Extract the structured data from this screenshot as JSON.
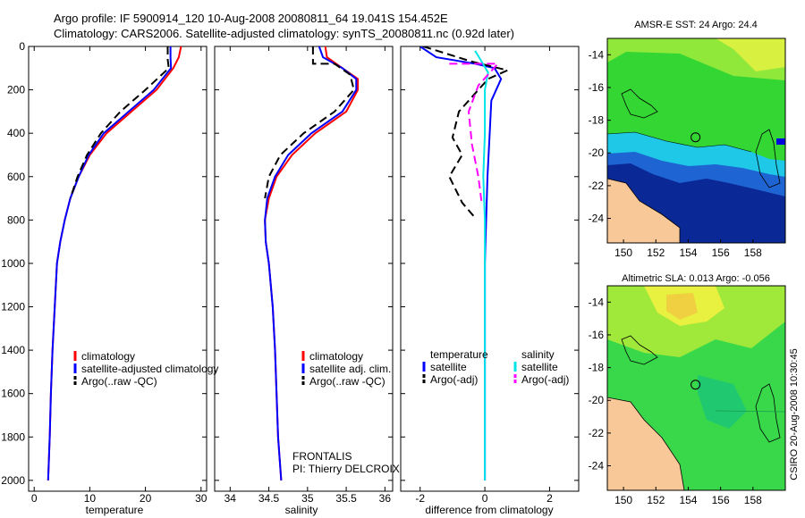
{
  "header": {
    "line1": "Argo profile: IF 5900914_120 10-Aug-2008 20080811_64 19.041S 154.452E",
    "line2": "Climatology: CARS2006. Satellite-adjusted climatology: synTS_20080811.nc (0.92d later)"
  },
  "colors": {
    "clim": "#ff0000",
    "sat": "#0000ff",
    "argo": "#000000",
    "sat_diff": "#00e5e5",
    "argo_adj": "#ff00ff",
    "land": "#f8c898"
  },
  "chart_data": [
    {
      "id": "temperature",
      "type": "line",
      "xlabel": "temperature",
      "xlim": [
        -1,
        31
      ],
      "ylim": [
        2050,
        0
      ],
      "xticks": [
        "0",
        "10",
        "20",
        "30"
      ],
      "xtick_values": [
        0,
        10,
        20,
        30
      ],
      "yticks": [
        "0",
        "200",
        "400",
        "600",
        "800",
        "1000",
        "1200",
        "1400",
        "1600",
        "1800",
        "2000"
      ],
      "ytick_values": [
        0,
        200,
        400,
        600,
        800,
        1000,
        1200,
        1400,
        1600,
        1800,
        2000
      ],
      "legend": [
        "climatology",
        "satellite-adjusted climatology",
        "Argo(..raw -QC)"
      ],
      "series": [
        {
          "name": "climatology",
          "color_key": "clim",
          "dash": "",
          "points": [
            [
              26.4,
              0
            ],
            [
              26,
              50
            ],
            [
              25,
              100
            ],
            [
              22,
              200
            ],
            [
              17.5,
              300
            ],
            [
              13,
              400
            ],
            [
              10,
              500
            ],
            [
              8,
              600
            ],
            [
              6.5,
              700
            ],
            [
              5.5,
              800
            ],
            [
              4.7,
              900
            ],
            [
              4.1,
              1000
            ],
            [
              3.7,
              1200
            ],
            [
              3.3,
              1400
            ],
            [
              3,
              1600
            ],
            [
              2.8,
              1800
            ],
            [
              2.5,
              2000
            ]
          ]
        },
        {
          "name": "satellite-adjusted climatology",
          "color_key": "sat",
          "dash": "",
          "points": [
            [
              24.5,
              0
            ],
            [
              24.5,
              50
            ],
            [
              24.6,
              100
            ],
            [
              21.5,
              200
            ],
            [
              17,
              300
            ],
            [
              12.5,
              400
            ],
            [
              9.8,
              500
            ],
            [
              8,
              600
            ],
            [
              6.5,
              700
            ],
            [
              5.5,
              800
            ],
            [
              4.7,
              900
            ],
            [
              4.1,
              1000
            ],
            [
              3.7,
              1200
            ],
            [
              3.3,
              1400
            ],
            [
              3,
              1600
            ],
            [
              2.8,
              1800
            ],
            [
              2.5,
              2000
            ]
          ]
        },
        {
          "name": "Argo(..raw -QC)",
          "color_key": "argo",
          "dash": "9,5",
          "points": [
            [
              24,
              0
            ],
            [
              24,
              60
            ],
            [
              24.2,
              100
            ],
            [
              20,
              200
            ],
            [
              15.5,
              300
            ],
            [
              12,
              400
            ],
            [
              9.5,
              500
            ],
            [
              7.8,
              600
            ],
            [
              6.5,
              700
            ]
          ]
        }
      ]
    },
    {
      "id": "salinity",
      "type": "line",
      "xlabel": "salinity",
      "xlim": [
        33.8,
        36.1
      ],
      "ylim": [
        2050,
        0
      ],
      "xticks": [
        "34",
        "34.5",
        "35",
        "35.5",
        "36"
      ],
      "xtick_values": [
        34,
        34.5,
        35,
        35.5,
        36
      ],
      "legend": [
        "climatology",
        "satellite adj. clim.",
        "Argo(..raw -QC)"
      ],
      "annotations": [
        "FRONTALIS",
        "PI: Thierry DELCROIX"
      ],
      "series": [
        {
          "name": "climatology",
          "color_key": "clim",
          "dash": "",
          "points": [
            [
              35.23,
              0
            ],
            [
              35.25,
              50
            ],
            [
              35.45,
              100
            ],
            [
              35.65,
              150
            ],
            [
              35.65,
              200
            ],
            [
              35.5,
              300
            ],
            [
              35.1,
              400
            ],
            [
              34.8,
              500
            ],
            [
              34.6,
              600
            ],
            [
              34.5,
              700
            ],
            [
              34.45,
              800
            ],
            [
              34.46,
              900
            ],
            [
              34.5,
              1000
            ],
            [
              34.55,
              1200
            ],
            [
              34.58,
              1400
            ],
            [
              34.6,
              1600
            ],
            [
              34.62,
              1800
            ],
            [
              34.66,
              2000
            ]
          ]
        },
        {
          "name": "satellite adj. clim.",
          "color_key": "sat",
          "dash": "",
          "points": [
            [
              35.15,
              0
            ],
            [
              35.2,
              50
            ],
            [
              35.45,
              100
            ],
            [
              35.63,
              150
            ],
            [
              35.63,
              200
            ],
            [
              35.45,
              300
            ],
            [
              35.05,
              400
            ],
            [
              34.75,
              500
            ],
            [
              34.58,
              600
            ],
            [
              34.48,
              700
            ],
            [
              34.45,
              800
            ],
            [
              34.46,
              900
            ],
            [
              34.5,
              1000
            ],
            [
              34.55,
              1200
            ],
            [
              34.58,
              1400
            ],
            [
              34.6,
              1600
            ],
            [
              34.62,
              1800
            ],
            [
              34.66,
              2000
            ]
          ]
        },
        {
          "name": "Argo(..raw -QC)",
          "color_key": "argo",
          "dash": "9,5",
          "points": [
            [
              35.07,
              0
            ],
            [
              35.07,
              80
            ],
            [
              35.35,
              80
            ],
            [
              35.55,
              130
            ],
            [
              35.6,
              200
            ],
            [
              35.35,
              300
            ],
            [
              34.95,
              400
            ],
            [
              34.65,
              500
            ],
            [
              34.5,
              600
            ],
            [
              34.45,
              700
            ]
          ]
        }
      ]
    },
    {
      "id": "difference",
      "type": "line",
      "xlabel": "difference from climatology",
      "xlim": [
        -2.6,
        2.9
      ],
      "ylim": [
        2050,
        0
      ],
      "xticks": [
        "-2",
        "0",
        "2"
      ],
      "xtick_values": [
        -2,
        0,
        2
      ],
      "legend_titles": [
        "temperature",
        "salinity"
      ],
      "legend": [
        "satellite",
        "Argo(-adj)",
        "satellite",
        "Argo(-adj)"
      ],
      "series": [
        {
          "name": "temperature satellite",
          "color_key": "sat",
          "dash": "",
          "points": [
            [
              -2,
              0
            ],
            [
              -1.5,
              50
            ],
            [
              -0.3,
              80
            ],
            [
              0.3,
              100
            ],
            [
              0.5,
              150
            ],
            [
              0.2,
              250
            ],
            [
              0.15,
              400
            ],
            [
              0.08,
              600
            ],
            [
              0.04,
              800
            ],
            [
              0,
              1000
            ],
            [
              0,
              2000
            ]
          ]
        },
        {
          "name": "temperature Argo(-adj)",
          "color_key": "argo",
          "dash": "9,5",
          "points": [
            [
              -1.9,
              0
            ],
            [
              -0.4,
              70
            ],
            [
              0.7,
              110
            ],
            [
              0.1,
              150
            ],
            [
              -0.8,
              300
            ],
            [
              -1,
              420
            ],
            [
              -0.7,
              500
            ],
            [
              -1.1,
              600
            ],
            [
              -0.7,
              720
            ],
            [
              -0.3,
              790
            ]
          ]
        },
        {
          "name": "salinity satellite",
          "color_key": "sat_diff",
          "dash": "",
          "points": [
            [
              -0.3,
              20
            ],
            [
              -0.1,
              70
            ],
            [
              0.1,
              120
            ],
            [
              0,
              200
            ],
            [
              0,
              400
            ],
            [
              -0.05,
              600
            ],
            [
              0,
              800
            ],
            [
              0,
              2000
            ]
          ]
        },
        {
          "name": "salinity Argo(-adj)",
          "color_key": "argo_adj",
          "dash": "9,5",
          "points": [
            [
              -1.1,
              80
            ],
            [
              0.4,
              80
            ],
            [
              -0.2,
              180
            ],
            [
              -0.5,
              300
            ],
            [
              -0.4,
              450
            ],
            [
              -0.2,
              600
            ],
            [
              -0.1,
              720
            ]
          ]
        }
      ]
    },
    {
      "id": "sst_map",
      "type": "heatmap",
      "title": "AMSR-E SST: 24 Argo: 24.4",
      "xlim": [
        149,
        160
      ],
      "ylim": [
        -25.5,
        -13
      ],
      "xticks": [
        "150",
        "152",
        "154",
        "156",
        "158"
      ],
      "xtick_values": [
        150,
        152,
        154,
        156,
        158
      ],
      "yticks": [
        "-14",
        "-16",
        "-18",
        "-20",
        "-22",
        "-24"
      ],
      "ytick_values": [
        -14,
        -16,
        -18,
        -20,
        -22,
        -24
      ],
      "marker": [
        154.452,
        -19.041
      ]
    },
    {
      "id": "sla_map",
      "type": "heatmap",
      "title": "Altimetric SLA: 0.013 Argo: -0.056",
      "xlim": [
        149,
        160
      ],
      "ylim": [
        -25.5,
        -13
      ],
      "xticks": [
        "150",
        "152",
        "154",
        "156",
        "158"
      ],
      "xtick_values": [
        150,
        152,
        154,
        156,
        158
      ],
      "yticks": [
        "-14",
        "-16",
        "-18",
        "-20",
        "-22",
        "-24"
      ],
      "ytick_values": [
        -14,
        -16,
        -18,
        -20,
        -22,
        -24
      ],
      "marker": [
        154.452,
        -19.041
      ]
    }
  ],
  "footer": {
    "credit": "CSIRO 20-Aug-2008 10:30:45"
  }
}
